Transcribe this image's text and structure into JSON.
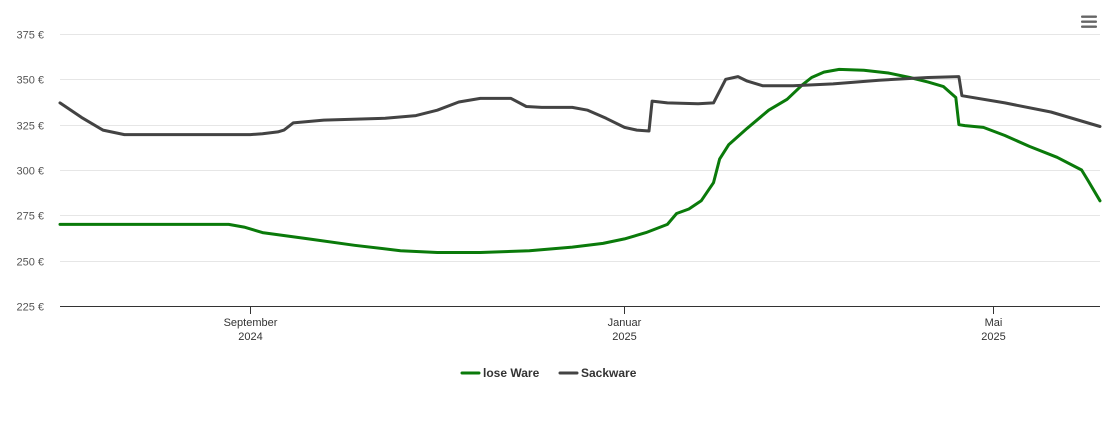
{
  "chart_data": {
    "type": "line",
    "y_ticks": [
      "225 €",
      "250 €",
      "275 €",
      "300 €",
      "325 €",
      "350 €",
      "375 €"
    ],
    "y_tick_values": [
      225,
      250,
      275,
      300,
      325,
      350,
      375
    ],
    "ylim": [
      225,
      375
    ],
    "x_range": [
      "2024-07-01",
      "2025-06-05"
    ],
    "x_ticks": [
      {
        "date": "2024-09-01",
        "line1": "September",
        "line2": "2024"
      },
      {
        "date": "2025-01-01",
        "line1": "Januar",
        "line2": "2025"
      },
      {
        "date": "2025-05-01",
        "line1": "Mai",
        "line2": "2025"
      }
    ],
    "grid": true,
    "legend_position": "bottom-center",
    "series": [
      {
        "name": "lose Ware",
        "color": "#0a7a0a",
        "points": [
          [
            "2024-07-01",
            270
          ],
          [
            "2024-07-20",
            270
          ],
          [
            "2024-08-10",
            270
          ],
          [
            "2024-08-25",
            270
          ],
          [
            "2024-08-30",
            268.5
          ],
          [
            "2024-09-05",
            265.5
          ],
          [
            "2024-09-20",
            262
          ],
          [
            "2024-10-05",
            258.5
          ],
          [
            "2024-10-20",
            255.5
          ],
          [
            "2024-11-01",
            254.5
          ],
          [
            "2024-11-15",
            254.5
          ],
          [
            "2024-12-01",
            255.5
          ],
          [
            "2024-12-15",
            257.5
          ],
          [
            "2024-12-25",
            259.5
          ],
          [
            "2025-01-01",
            262
          ],
          [
            "2025-01-08",
            265.5
          ],
          [
            "2025-01-15",
            270
          ],
          [
            "2025-01-18",
            276
          ],
          [
            "2025-01-22",
            278.5
          ],
          [
            "2025-01-26",
            283
          ],
          [
            "2025-01-30",
            293
          ],
          [
            "2025-02-01",
            306
          ],
          [
            "2025-02-04",
            314
          ],
          [
            "2025-02-10",
            323
          ],
          [
            "2025-02-17",
            333
          ],
          [
            "2025-02-23",
            339
          ],
          [
            "2025-02-28",
            347
          ],
          [
            "2025-03-03",
            351
          ],
          [
            "2025-03-07",
            354
          ],
          [
            "2025-03-12",
            355.5
          ],
          [
            "2025-03-20",
            355
          ],
          [
            "2025-03-28",
            353.5
          ],
          [
            "2025-04-04",
            351
          ],
          [
            "2025-04-10",
            348.5
          ],
          [
            "2025-04-15",
            346
          ],
          [
            "2025-04-19",
            340
          ],
          [
            "2025-04-20",
            325
          ],
          [
            "2025-04-22",
            324.5
          ],
          [
            "2025-04-28",
            323.5
          ],
          [
            "2025-05-05",
            319
          ],
          [
            "2025-05-13",
            313
          ],
          [
            "2025-05-22",
            307
          ],
          [
            "2025-05-30",
            300
          ],
          [
            "2025-06-01",
            294.5
          ],
          [
            "2025-06-05",
            283
          ]
        ]
      },
      {
        "name": "Sackware",
        "color": "#434343",
        "points": [
          [
            "2024-07-01",
            337
          ],
          [
            "2024-07-08",
            329
          ],
          [
            "2024-07-15",
            322
          ],
          [
            "2024-07-22",
            319.5
          ],
          [
            "2024-08-15",
            319.5
          ],
          [
            "2024-09-01",
            319.5
          ],
          [
            "2024-09-05",
            320
          ],
          [
            "2024-09-10",
            321
          ],
          [
            "2024-09-12",
            322
          ],
          [
            "2024-09-15",
            326
          ],
          [
            "2024-09-25",
            327.5
          ],
          [
            "2024-10-15",
            328.5
          ],
          [
            "2024-10-25",
            330
          ],
          [
            "2024-11-01",
            333
          ],
          [
            "2024-11-08",
            337.5
          ],
          [
            "2024-11-15",
            339.5
          ],
          [
            "2024-11-25",
            339.5
          ],
          [
            "2024-11-30",
            335
          ],
          [
            "2024-12-05",
            334.5
          ],
          [
            "2024-12-15",
            334.5
          ],
          [
            "2024-12-20",
            333
          ],
          [
            "2024-12-26",
            328.5
          ],
          [
            "2025-01-01",
            323.5
          ],
          [
            "2025-01-05",
            322
          ],
          [
            "2025-01-09",
            321.5
          ],
          [
            "2025-01-10",
            338
          ],
          [
            "2025-01-15",
            337
          ],
          [
            "2025-01-25",
            336.5
          ],
          [
            "2025-01-30",
            337
          ],
          [
            "2025-02-03",
            350
          ],
          [
            "2025-02-07",
            351.5
          ],
          [
            "2025-02-10",
            349
          ],
          [
            "2025-02-15",
            346.5
          ],
          [
            "2025-02-25",
            346.5
          ],
          [
            "2025-03-10",
            347.5
          ],
          [
            "2025-03-25",
            349.5
          ],
          [
            "2025-04-10",
            351
          ],
          [
            "2025-04-20",
            351.5
          ],
          [
            "2025-04-21",
            341
          ],
          [
            "2025-05-05",
            337
          ],
          [
            "2025-05-20",
            332
          ],
          [
            "2025-06-05",
            324
          ]
        ]
      }
    ]
  },
  "menu": {
    "icon": "hamburger-menu-icon"
  }
}
